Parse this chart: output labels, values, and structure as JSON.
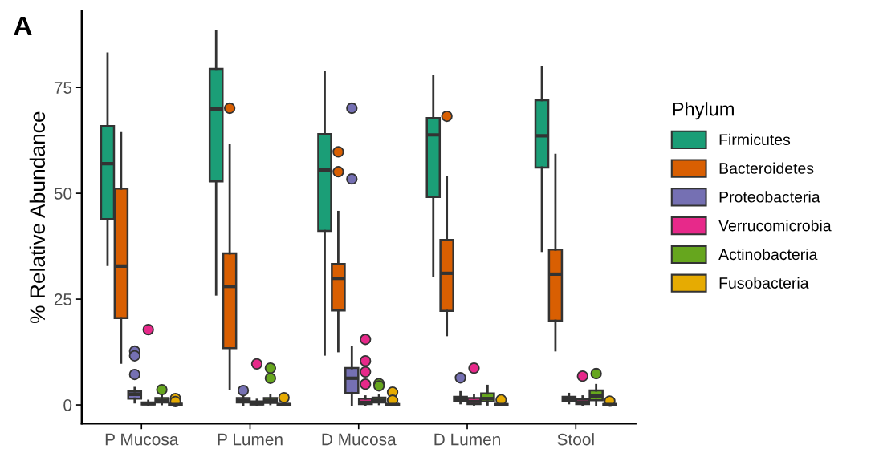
{
  "chart_data": {
    "type": "box",
    "ylabel": "% Relative Abundance",
    "legend_title": "Phylum",
    "legend": "right",
    "grid": false,
    "annotations": [
      "A"
    ],
    "categories": [
      "P Mucosa",
      "P Lumen",
      "D Mucosa",
      "D Lumen",
      "Stool"
    ],
    "ylim": [
      -4.4,
      93
    ],
    "yticks": [
      0,
      25,
      50,
      75
    ],
    "series": [
      {
        "name": "Firmicutes",
        "color": "#1b9e77",
        "boxes": [
          {
            "low": 33.1,
            "q1": 43.9,
            "median": 57.0,
            "q3": 65.9,
            "high": 83.0
          },
          {
            "low": 26.1,
            "q1": 52.8,
            "median": 69.9,
            "q3": 79.4,
            "high": 88.4
          },
          {
            "low": 11.9,
            "q1": 41.1,
            "median": 55.5,
            "q3": 64.0,
            "high": 78.6
          },
          {
            "low": 30.5,
            "q1": 49.1,
            "median": 63.8,
            "q3": 67.8,
            "high": 77.8
          },
          {
            "low": 36.4,
            "q1": 56.1,
            "median": 63.6,
            "q3": 72.0,
            "high": 79.9
          }
        ]
      },
      {
        "name": "Bacteroidetes",
        "color": "#d95f02",
        "boxes": [
          {
            "low": 10.0,
            "q1": 20.5,
            "median": 32.8,
            "q3": 51.1,
            "high": 64.2
          },
          {
            "low": 3.8,
            "q1": 13.4,
            "median": 28.0,
            "q3": 35.8,
            "high": 61.4,
            "outliers": [
              70.1
            ]
          },
          {
            "low": 12.7,
            "q1": 22.3,
            "median": 29.9,
            "q3": 33.3,
            "high": 45.6,
            "outliers": [
              59.8,
              55.1
            ]
          },
          {
            "low": 16.5,
            "q1": 22.2,
            "median": 31.1,
            "q3": 39.0,
            "high": 53.8,
            "outliers": [
              68.2
            ]
          },
          {
            "low": 12.9,
            "q1": 19.9,
            "median": 30.9,
            "q3": 36.7,
            "high": 59.1
          }
        ]
      },
      {
        "name": "Proteobacteria",
        "color": "#7570b3",
        "boxes": [
          {
            "low": 0.6,
            "q1": 1.5,
            "median": 2.5,
            "q3": 3.2,
            "high": 4.0,
            "outliers": [
              12.7,
              11.6,
              7.2
            ]
          },
          {
            "low": 0.0,
            "q1": 0.6,
            "median": 1.0,
            "q3": 1.6,
            "high": 2.3,
            "outliers": [
              3.4
            ]
          },
          {
            "low": 0.0,
            "q1": 2.8,
            "median": 6.3,
            "q3": 8.7,
            "high": 13.6,
            "outliers": [
              70.1,
              53.4
            ]
          },
          {
            "low": 0.4,
            "q1": 0.8,
            "median": 1.2,
            "q3": 1.9,
            "high": 3.0,
            "outliers": [
              6.4
            ]
          },
          {
            "low": 0.4,
            "q1": 0.8,
            "median": 1.2,
            "q3": 1.9,
            "high": 2.6
          }
        ]
      },
      {
        "name": "Verrucomicrobia",
        "color": "#e7298a",
        "boxes": [
          {
            "low": 0.0,
            "q1": 0.1,
            "median": 0.3,
            "q3": 0.6,
            "high": 1.0,
            "outliers": [
              17.8
            ]
          },
          {
            "low": 0.0,
            "q1": 0.1,
            "median": 0.3,
            "q3": 0.8,
            "high": 1.2,
            "outliers": [
              9.7
            ]
          },
          {
            "low": 0.0,
            "q1": 0.2,
            "median": 0.6,
            "q3": 1.5,
            "high": 2.0,
            "outliers": [
              15.5,
              10.4,
              7.8,
              4.9
            ]
          },
          {
            "low": 0.0,
            "q1": 0.2,
            "median": 0.8,
            "q3": 1.6,
            "high": 2.3,
            "outliers": [
              8.7
            ]
          },
          {
            "low": 0.0,
            "q1": 0.2,
            "median": 0.7,
            "q3": 1.4,
            "high": 2.0,
            "outliers": [
              6.8
            ]
          }
        ]
      },
      {
        "name": "Actinobacteria",
        "color": "#66a61e",
        "boxes": [
          {
            "low": 0.2,
            "q1": 0.6,
            "median": 1.0,
            "q3": 1.6,
            "high": 2.3,
            "outliers": [
              3.6
            ]
          },
          {
            "low": 0.2,
            "q1": 0.5,
            "median": 1.0,
            "q3": 1.6,
            "high": 2.4,
            "outliers": [
              8.7,
              6.3
            ]
          },
          {
            "low": 0.2,
            "q1": 0.6,
            "median": 1.1,
            "q3": 1.7,
            "high": 2.2,
            "outliers": [
              5.0,
              4.5
            ]
          },
          {
            "low": 0.1,
            "q1": 0.8,
            "median": 1.5,
            "q3": 2.7,
            "high": 4.5
          },
          {
            "low": 0.0,
            "q1": 1.1,
            "median": 2.1,
            "q3": 3.4,
            "high": 4.7,
            "outliers": [
              7.4
            ]
          }
        ]
      },
      {
        "name": "Fusobacteria",
        "color": "#e6ab02",
        "boxes": [
          {
            "low": 0.0,
            "q1": 0.0,
            "median": 0.1,
            "q3": 0.3,
            "high": 0.5,
            "outliers": [
              1.5,
              0.8
            ]
          },
          {
            "low": 0.0,
            "q1": 0.0,
            "median": 0.1,
            "q3": 0.2,
            "high": 0.4,
            "outliers": [
              1.7
            ]
          },
          {
            "low": 0.0,
            "q1": 0.0,
            "median": 0.1,
            "q3": 0.2,
            "high": 0.4,
            "outliers": [
              3.0,
              1.1
            ]
          },
          {
            "low": 0.0,
            "q1": 0.0,
            "median": 0.1,
            "q3": 0.2,
            "high": 0.4,
            "outliers": [
              1.2
            ]
          },
          {
            "low": 0.0,
            "q1": 0.0,
            "median": 0.1,
            "q3": 0.2,
            "high": 0.3,
            "outliers": [
              0.9
            ]
          }
        ]
      }
    ]
  }
}
